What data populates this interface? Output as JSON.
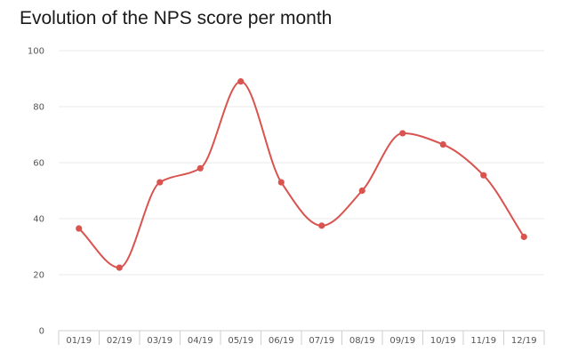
{
  "chart_data": {
    "type": "line",
    "title": "Evolution of the NPS score per month",
    "xlabel": "",
    "ylabel": "",
    "categories": [
      "01/19",
      "02/19",
      "03/19",
      "04/19",
      "05/19",
      "06/19",
      "07/19",
      "08/19",
      "09/19",
      "10/19",
      "11/19",
      "12/19"
    ],
    "series": [
      {
        "values": [
          36.5,
          22.5,
          53,
          58,
          89,
          53,
          37.5,
          50,
          70.5,
          66.5,
          55.5,
          33.5
        ]
      }
    ],
    "ylim": [
      0,
      100
    ],
    "yticks": [
      "0",
      "20",
      "40",
      "60",
      "80",
      "100"
    ],
    "grid": true,
    "smooth": true,
    "line_color": "#d9534f",
    "grid_color": "#e8e8e8",
    "axis_color": "#cfcfcf"
  }
}
